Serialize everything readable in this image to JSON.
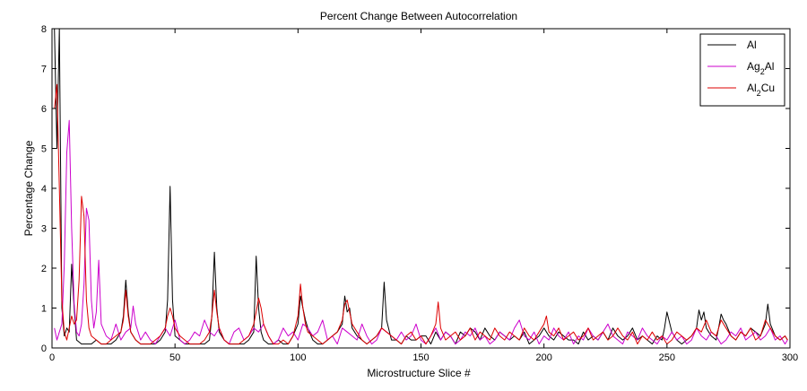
{
  "chart_data": {
    "type": "line",
    "title": "Percent Change Between Autocorrelation",
    "xlabel": "Microstructure Slice #",
    "ylabel": "Percentage Change",
    "xlim": [
      0,
      300
    ],
    "ylim": [
      0,
      8
    ],
    "xticks": [
      0,
      50,
      100,
      150,
      200,
      250,
      300
    ],
    "yticks": [
      0,
      1,
      2,
      3,
      4,
      5,
      6,
      7,
      8
    ],
    "grid": false,
    "legend_position": "top-right",
    "series": [
      {
        "name": "Al",
        "legend_parts": [
          {
            "t": "Al"
          }
        ],
        "color": "#000000",
        "x": [
          1,
          2,
          3,
          4,
          5,
          6,
          7,
          8,
          9,
          10,
          12,
          14,
          16,
          18,
          20,
          22,
          24,
          26,
          28,
          29,
          30,
          31,
          32,
          34,
          36,
          38,
          40,
          42,
          44,
          46,
          47,
          48,
          49,
          50,
          52,
          54,
          56,
          58,
          60,
          62,
          64,
          65,
          66,
          67,
          68,
          70,
          72,
          74,
          76,
          78,
          80,
          82,
          83,
          84,
          85,
          86,
          88,
          90,
          92,
          94,
          96,
          98,
          100,
          101,
          102,
          103,
          104,
          106,
          108,
          110,
          112,
          114,
          116,
          118,
          119,
          120,
          121,
          122,
          124,
          126,
          128,
          130,
          132,
          134,
          135,
          136,
          138,
          140,
          142,
          144,
          146,
          148,
          150,
          152,
          154,
          156,
          158,
          160,
          162,
          164,
          166,
          168,
          170,
          172,
          174,
          176,
          178,
          180,
          182,
          184,
          186,
          188,
          190,
          192,
          194,
          196,
          198,
          200,
          202,
          204,
          206,
          208,
          210,
          212,
          214,
          216,
          218,
          220,
          222,
          224,
          226,
          228,
          230,
          232,
          234,
          236,
          238,
          240,
          242,
          244,
          246,
          248,
          249,
          250,
          252,
          254,
          256,
          258,
          260,
          262,
          263,
          264,
          265,
          266,
          268,
          270,
          271,
          272,
          273,
          274,
          276,
          278,
          280,
          282,
          284,
          286,
          288,
          290,
          291,
          292,
          294,
          296,
          298,
          299
        ],
        "y": [
          8.0,
          5.0,
          8.0,
          1.0,
          0.3,
          0.5,
          0.4,
          2.1,
          1.0,
          0.2,
          0.1,
          0.1,
          0.1,
          0.2,
          0.1,
          0.1,
          0.1,
          0.2,
          0.4,
          0.8,
          1.7,
          0.9,
          0.4,
          0.2,
          0.1,
          0.1,
          0.1,
          0.1,
          0.2,
          0.4,
          1.2,
          4.05,
          1.2,
          0.3,
          0.2,
          0.1,
          0.1,
          0.1,
          0.1,
          0.1,
          0.2,
          0.8,
          2.4,
          1.0,
          0.4,
          0.2,
          0.1,
          0.1,
          0.1,
          0.1,
          0.2,
          0.4,
          2.3,
          1.0,
          0.4,
          0.2,
          0.1,
          0.1,
          0.2,
          0.1,
          0.1,
          0.3,
          0.6,
          1.3,
          1.0,
          0.7,
          0.5,
          0.2,
          0.1,
          0.1,
          0.2,
          0.3,
          0.4,
          0.6,
          1.3,
          0.9,
          1.0,
          0.5,
          0.3,
          0.2,
          0.1,
          0.2,
          0.3,
          0.5,
          1.65,
          0.7,
          0.2,
          0.2,
          0.1,
          0.3,
          0.2,
          0.2,
          0.3,
          0.3,
          0.1,
          0.4,
          0.2,
          0.4,
          0.3,
          0.1,
          0.4,
          0.3,
          0.5,
          0.4,
          0.2,
          0.5,
          0.3,
          0.2,
          0.4,
          0.3,
          0.2,
          0.3,
          0.2,
          0.4,
          0.1,
          0.2,
          0.3,
          0.5,
          0.3,
          0.2,
          0.4,
          0.3,
          0.2,
          0.2,
          0.1,
          0.4,
          0.2,
          0.3,
          0.2,
          0.4,
          0.2,
          0.5,
          0.3,
          0.2,
          0.3,
          0.5,
          0.2,
          0.3,
          0.2,
          0.1,
          0.3,
          0.2,
          0.5,
          0.9,
          0.4,
          0.2,
          0.1,
          0.2,
          0.3,
          0.5,
          0.95,
          0.7,
          0.9,
          0.5,
          0.3,
          0.2,
          0.5,
          0.85,
          0.7,
          0.6,
          0.3,
          0.2,
          0.4,
          0.3,
          0.5,
          0.4,
          0.3,
          0.6,
          1.1,
          0.6,
          0.3,
          0.2,
          0.3,
          0.2
        ]
      },
      {
        "name": "Ag2Al",
        "legend_parts": [
          {
            "t": "Ag"
          },
          {
            "t": "2",
            "sub": true
          },
          {
            "t": "Al"
          }
        ],
        "color": "#cc00cc",
        "x": [
          1,
          2,
          3,
          4,
          5,
          6,
          7,
          8,
          9,
          10,
          11,
          12,
          13,
          14,
          15,
          16,
          17,
          18,
          19,
          20,
          22,
          24,
          26,
          28,
          30,
          32,
          33,
          34,
          36,
          38,
          40,
          42,
          44,
          46,
          48,
          50,
          52,
          54,
          56,
          58,
          60,
          62,
          64,
          66,
          68,
          70,
          72,
          74,
          76,
          78,
          80,
          82,
          84,
          86,
          88,
          90,
          92,
          94,
          96,
          98,
          100,
          102,
          104,
          106,
          108,
          110,
          112,
          114,
          116,
          118,
          120,
          122,
          124,
          126,
          128,
          130,
          132,
          134,
          136,
          138,
          140,
          142,
          144,
          146,
          148,
          150,
          152,
          154,
          156,
          158,
          160,
          162,
          164,
          166,
          168,
          170,
          172,
          174,
          176,
          178,
          180,
          182,
          184,
          186,
          188,
          190,
          192,
          194,
          196,
          198,
          200,
          202,
          204,
          206,
          208,
          210,
          212,
          214,
          216,
          218,
          220,
          222,
          224,
          226,
          228,
          230,
          232,
          234,
          236,
          238,
          240,
          242,
          244,
          246,
          248,
          250,
          252,
          254,
          256,
          258,
          260,
          262,
          264,
          266,
          268,
          270,
          272,
          274,
          276,
          278,
          280,
          282,
          284,
          286,
          288,
          290,
          292,
          294,
          296,
          298,
          299
        ],
        "y": [
          0.5,
          0.2,
          0.4,
          0.6,
          2.1,
          4.9,
          5.7,
          3.0,
          1.1,
          0.4,
          0.3,
          0.6,
          1.6,
          3.5,
          3.2,
          1.2,
          0.5,
          0.9,
          2.2,
          0.6,
          0.3,
          0.2,
          0.6,
          0.2,
          0.4,
          0.5,
          1.05,
          0.6,
          0.2,
          0.4,
          0.2,
          0.1,
          0.3,
          0.5,
          0.3,
          0.7,
          0.2,
          0.1,
          0.2,
          0.4,
          0.3,
          0.7,
          0.4,
          0.3,
          0.5,
          0.2,
          0.1,
          0.4,
          0.5,
          0.2,
          0.3,
          0.5,
          0.4,
          0.6,
          0.3,
          0.1,
          0.2,
          0.5,
          0.3,
          0.4,
          0.2,
          0.6,
          0.5,
          0.3,
          0.4,
          0.7,
          0.2,
          0.3,
          0.1,
          0.5,
          0.4,
          0.3,
          0.2,
          0.6,
          0.3,
          0.1,
          0.2,
          0.5,
          0.4,
          0.3,
          0.2,
          0.4,
          0.2,
          0.3,
          0.6,
          0.2,
          0.1,
          0.3,
          0.5,
          0.2,
          0.4,
          0.3,
          0.1,
          0.2,
          0.4,
          0.3,
          0.5,
          0.2,
          0.3,
          0.1,
          0.2,
          0.4,
          0.3,
          0.2,
          0.5,
          0.7,
          0.3,
          0.2,
          0.4,
          0.1,
          0.3,
          0.2,
          0.5,
          0.3,
          0.2,
          0.4,
          0.1,
          0.3,
          0.2,
          0.5,
          0.3,
          0.2,
          0.4,
          0.6,
          0.3,
          0.2,
          0.1,
          0.4,
          0.3,
          0.2,
          0.5,
          0.3,
          0.2,
          0.1,
          0.3,
          0.2,
          0.4,
          0.2,
          0.3,
          0.1,
          0.2,
          0.5,
          0.3,
          0.2,
          0.4,
          0.3,
          0.1,
          0.2,
          0.4,
          0.3,
          0.5,
          0.2,
          0.3,
          0.4,
          0.2,
          0.3,
          0.5,
          0.2,
          0.3,
          0.1,
          0.2
        ]
      },
      {
        "name": "Al2Cu",
        "legend_parts": [
          {
            "t": "Al"
          },
          {
            "t": "2",
            "sub": true
          },
          {
            "t": "Cu"
          }
        ],
        "color": "#dd0000",
        "x": [
          1,
          2,
          3,
          4,
          5,
          6,
          7,
          8,
          9,
          10,
          11,
          12,
          13,
          14,
          15,
          16,
          18,
          20,
          22,
          24,
          26,
          28,
          29,
          30,
          31,
          32,
          34,
          36,
          38,
          40,
          42,
          44,
          46,
          47,
          48,
          49,
          50,
          52,
          54,
          56,
          58,
          60,
          62,
          64,
          65,
          66,
          67,
          68,
          70,
          72,
          74,
          76,
          78,
          80,
          82,
          83,
          84,
          85,
          86,
          88,
          90,
          92,
          94,
          96,
          98,
          100,
          101,
          102,
          103,
          104,
          106,
          108,
          110,
          112,
          114,
          116,
          118,
          119,
          120,
          121,
          122,
          124,
          126,
          128,
          130,
          132,
          134,
          136,
          138,
          140,
          142,
          144,
          146,
          148,
          150,
          152,
          154,
          156,
          157,
          158,
          160,
          162,
          164,
          166,
          168,
          170,
          172,
          174,
          176,
          178,
          180,
          182,
          184,
          186,
          188,
          190,
          192,
          194,
          196,
          198,
          200,
          201,
          202,
          204,
          206,
          208,
          210,
          212,
          214,
          216,
          218,
          220,
          222,
          224,
          226,
          228,
          230,
          232,
          234,
          236,
          238,
          240,
          242,
          244,
          246,
          248,
          250,
          252,
          254,
          256,
          258,
          260,
          262,
          264,
          266,
          268,
          270,
          272,
          274,
          276,
          278,
          280,
          282,
          284,
          286,
          288,
          290,
          292,
          294,
          296,
          298,
          299
        ],
        "y": [
          6.0,
          6.6,
          4.0,
          1.2,
          0.4,
          0.2,
          0.5,
          0.8,
          0.6,
          0.7,
          1.7,
          3.8,
          3.3,
          1.2,
          0.5,
          0.3,
          0.2,
          0.1,
          0.1,
          0.2,
          0.3,
          0.4,
          0.7,
          1.45,
          0.8,
          0.4,
          0.2,
          0.1,
          0.1,
          0.1,
          0.2,
          0.3,
          0.5,
          0.8,
          1.0,
          0.8,
          0.5,
          0.3,
          0.2,
          0.1,
          0.1,
          0.1,
          0.2,
          0.4,
          0.8,
          1.45,
          0.9,
          0.5,
          0.2,
          0.1,
          0.1,
          0.1,
          0.2,
          0.3,
          0.6,
          0.9,
          1.25,
          1.0,
          0.6,
          0.3,
          0.1,
          0.1,
          0.2,
          0.1,
          0.3,
          0.8,
          1.6,
          1.0,
          0.6,
          0.4,
          0.3,
          0.2,
          0.1,
          0.2,
          0.3,
          0.4,
          0.7,
          1.1,
          1.2,
          0.9,
          0.6,
          0.4,
          0.2,
          0.1,
          0.2,
          0.3,
          0.5,
          0.4,
          0.3,
          0.2,
          0.1,
          0.3,
          0.4,
          0.2,
          0.3,
          0.1,
          0.3,
          0.6,
          1.15,
          0.5,
          0.2,
          0.3,
          0.4,
          0.2,
          0.3,
          0.5,
          0.2,
          0.4,
          0.3,
          0.2,
          0.5,
          0.3,
          0.2,
          0.4,
          0.3,
          0.2,
          0.5,
          0.3,
          0.2,
          0.4,
          0.6,
          0.8,
          0.4,
          0.3,
          0.5,
          0.2,
          0.3,
          0.4,
          0.2,
          0.3,
          0.5,
          0.2,
          0.3,
          0.4,
          0.2,
          0.3,
          0.5,
          0.3,
          0.2,
          0.4,
          0.1,
          0.3,
          0.2,
          0.4,
          0.2,
          0.3,
          0.1,
          0.2,
          0.4,
          0.3,
          0.2,
          0.3,
          0.5,
          0.4,
          0.7,
          0.4,
          0.3,
          0.7,
          0.5,
          0.3,
          0.2,
          0.4,
          0.3,
          0.5,
          0.2,
          0.3,
          0.7,
          0.5,
          0.3,
          0.2,
          0.3,
          0.2
        ]
      }
    ]
  }
}
